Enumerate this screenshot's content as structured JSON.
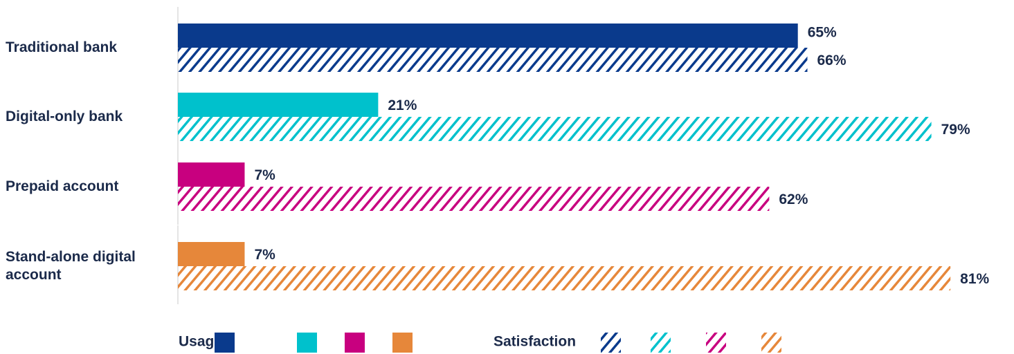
{
  "chart_data": {
    "type": "bar",
    "orientation": "horizontal",
    "categories": [
      "Traditional bank",
      "Digital-only bank",
      "Prepaid account",
      "Stand-alone digital account"
    ],
    "colors": [
      "#0a3a8c",
      "#00c1cc",
      "#c8007f",
      "#e6873a"
    ],
    "series": [
      {
        "name": "Usage",
        "fill": "solid",
        "values": [
          65,
          21,
          7,
          7
        ],
        "value_labels": [
          "65%",
          "21%",
          "7%",
          "7%"
        ]
      },
      {
        "name": "Satisfaction",
        "fill": "hatched",
        "values": [
          66,
          79,
          62,
          81
        ],
        "value_labels": [
          "66%",
          "79%",
          "62%",
          "81%"
        ]
      }
    ]
  }
}
